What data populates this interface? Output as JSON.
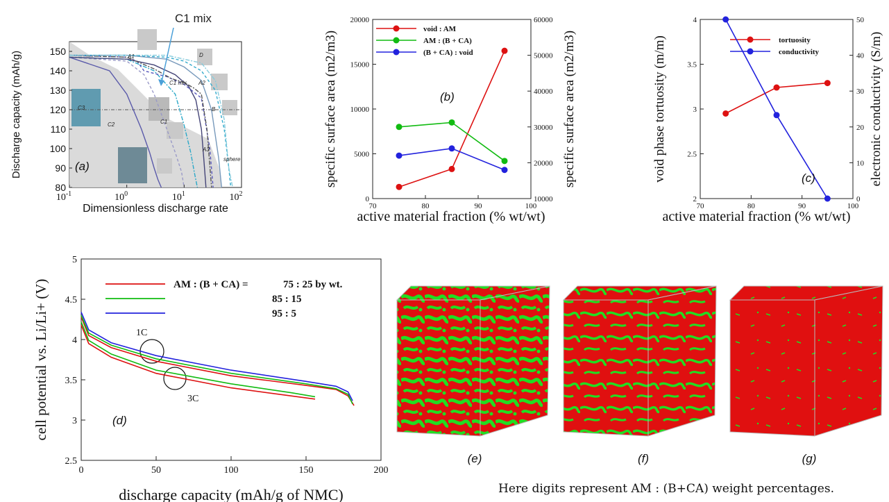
{
  "chart_data": [
    {
      "id": "a",
      "type": "line",
      "panel_label": "(a)",
      "xlabel": "Dimensionless discharge rate",
      "ylabel": "Discharge capacity (mAh/g)",
      "xscale": "log",
      "xlim": [
        0.1,
        100
      ],
      "ylim": [
        80,
        155
      ],
      "x_ticks": [
        "10-1",
        "100",
        "101",
        "102"
      ],
      "y_ticks": [
        80,
        90,
        100,
        110,
        120,
        130,
        140,
        150
      ],
      "annotations": [
        "C1 mix",
        "A1",
        "A2",
        "A3",
        "C3",
        "C2",
        "C1",
        "B",
        "D",
        "sphere",
        "C1 mix"
      ],
      "reference_line_y": 120,
      "series": [
        {
          "label": "C3",
          "color": "#5a5aaa",
          "x": [
            0.1,
            0.5,
            1,
            1.8,
            2.5,
            3,
            3.5,
            4
          ],
          "y": [
            147,
            140,
            128,
            110,
            98,
            90,
            84,
            80
          ]
        },
        {
          "label": "C2",
          "color": "#9a9ac8",
          "x": [
            0.1,
            1,
            2,
            3,
            5,
            7,
            9,
            10
          ],
          "y": [
            147,
            145,
            138,
            128,
            110,
            98,
            88,
            80
          ]
        },
        {
          "label": "A3",
          "color": "#2aa8c8",
          "x": [
            0.1,
            1,
            3,
            7,
            10,
            13,
            15,
            17
          ],
          "y": [
            147,
            146,
            140,
            128,
            112,
            98,
            88,
            80
          ]
        },
        {
          "label": "C1",
          "color": "#444477",
          "x": [
            0.1,
            1,
            3,
            7,
            12,
            16,
            20,
            22,
            24
          ],
          "y": [
            147,
            146,
            143,
            138,
            132,
            125,
            110,
            95,
            80
          ]
        },
        {
          "label": "A1",
          "color": "#5555bb",
          "x": [
            0.1,
            1,
            1.5,
            2,
            5,
            10,
            20,
            28,
            32
          ],
          "y": [
            148,
            147,
            145,
            140,
            137,
            133,
            126,
            100,
            80
          ]
        },
        {
          "label": "C1 mix",
          "color": "#555555",
          "x": [
            0.1,
            1,
            3,
            6,
            10,
            15,
            20,
            25,
            30
          ],
          "y": [
            148,
            147,
            141,
            136,
            134,
            131,
            128,
            110,
            80
          ]
        },
        {
          "label": "A2",
          "color": "#7799bb",
          "x": [
            0.1,
            1,
            5,
            10,
            20,
            30,
            40,
            45
          ],
          "y": [
            148,
            148,
            146,
            142,
            135,
            120,
            95,
            80
          ]
        },
        {
          "label": "B",
          "color": "#33aacc",
          "x": [
            0.1,
            1,
            5,
            10,
            20,
            35,
            50,
            60,
            65
          ],
          "y": [
            148,
            148,
            147,
            145,
            140,
            130,
            110,
            90,
            80
          ]
        },
        {
          "label": "sphere",
          "color": "#88ccdd",
          "x": [
            0.1,
            1,
            5,
            10,
            20,
            35,
            50,
            60,
            70
          ],
          "y": [
            148,
            148,
            148,
            146,
            144,
            135,
            115,
            90,
            80
          ]
        }
      ]
    },
    {
      "id": "b",
      "type": "line",
      "panel_label": "(b)",
      "xlabel": "active  material  fraction  (% wt/wt)",
      "ylabel_left": "specific  surface  area  (m2/m3)",
      "ylabel_right": "specific  surface  area  (m2/m3)",
      "xlim": [
        70,
        100
      ],
      "ylim_left": [
        0,
        20000
      ],
      "ylim_right": [
        10000,
        60000
      ],
      "x_ticks": [
        70,
        80,
        90,
        100
      ],
      "y_ticks_left": [
        0,
        5000,
        10000,
        15000,
        20000
      ],
      "y_ticks_right": [
        10000,
        20000,
        30000,
        40000,
        50000,
        60000
      ],
      "legend_position": "top-left",
      "series": [
        {
          "name": "void  :  AM",
          "color": "#dd1111",
          "axis": "left",
          "x": [
            75,
            85,
            95
          ],
          "y": [
            1300,
            3300,
            16500
          ]
        },
        {
          "name": "AM  :  (B + CA)",
          "color": "#11bb11",
          "axis": "left",
          "x": [
            75,
            85,
            95
          ],
          "y": [
            8000,
            8500,
            4200
          ]
        },
        {
          "name": "(B + CA)  :  void",
          "color": "#2222dd",
          "axis": "left",
          "x": [
            75,
            85,
            95
          ],
          "y": [
            4800,
            5600,
            3200
          ]
        }
      ]
    },
    {
      "id": "c",
      "type": "line",
      "panel_label": "(c)",
      "xlabel": "active  material  fraction  (% wt/wt)",
      "ylabel_left": "void  phase  tortuosity  (m/m)",
      "ylabel_right": "electronic  conductivity  (S/m)",
      "xlim": [
        70,
        100
      ],
      "ylim_left": [
        2,
        4
      ],
      "ylim_right": [
        0,
        50
      ],
      "x_ticks": [
        70,
        80,
        90,
        100
      ],
      "y_ticks_left": [
        2,
        2.5,
        3,
        3.5,
        4
      ],
      "y_ticks_right": [
        0,
        10,
        20,
        30,
        40,
        50
      ],
      "legend_position": "top-right",
      "series": [
        {
          "name": "tortuosity",
          "color": "#dd1111",
          "axis": "left",
          "x": [
            75,
            85,
            95
          ],
          "y": [
            2.95,
            3.24,
            3.29
          ]
        },
        {
          "name": "conductivity",
          "color": "#2222dd",
          "axis": "right",
          "x": [
            75,
            85,
            95
          ],
          "y": [
            50,
            23.3,
            0
          ]
        }
      ]
    },
    {
      "id": "d",
      "type": "line",
      "panel_label": "(d)",
      "xlabel": "discharge  capacity  (mAh/g  of  NMC)",
      "ylabel": "cell  potential  vs.  Li/Li+  (V)",
      "xlim": [
        0,
        200
      ],
      "ylim": [
        2.5,
        5
      ],
      "x_ticks": [
        0,
        50,
        100,
        150,
        200
      ],
      "y_ticks": [
        2.5,
        3,
        3.5,
        4,
        4.5,
        5
      ],
      "legend_title": "AM : (B + CA)  =",
      "legend_entries": [
        {
          "text": "75 : 25 by wt.",
          "color": "#dd1111"
        },
        {
          "text": "85 : 15",
          "color": "#11bb11"
        },
        {
          "text": "95 : 5",
          "color": "#2222dd"
        }
      ],
      "annotations": [
        "1C",
        "3C"
      ],
      "series": [
        {
          "label": "75:25 1C",
          "color": "#dd1111",
          "x": [
            0,
            5,
            20,
            50,
            100,
            150,
            170,
            178,
            182
          ],
          "y": [
            4.28,
            4.05,
            3.9,
            3.73,
            3.55,
            3.43,
            3.38,
            3.3,
            3.18
          ]
        },
        {
          "label": "85:15 1C",
          "color": "#11bb11",
          "x": [
            0,
            5,
            20,
            50,
            100,
            150,
            170,
            178,
            181
          ],
          "y": [
            4.3,
            4.08,
            3.93,
            3.76,
            3.58,
            3.45,
            3.39,
            3.32,
            3.2
          ]
        },
        {
          "label": "95:5 1C",
          "color": "#2222dd",
          "x": [
            0,
            5,
            20,
            50,
            100,
            150,
            170,
            178,
            181
          ],
          "y": [
            4.34,
            4.12,
            3.96,
            3.8,
            3.62,
            3.48,
            3.42,
            3.35,
            3.24
          ]
        },
        {
          "label": "75:25 3C",
          "color": "#dd1111",
          "x": [
            0,
            5,
            20,
            50,
            100,
            140,
            156
          ],
          "y": [
            4.18,
            3.95,
            3.78,
            3.58,
            3.4,
            3.3,
            3.26
          ]
        },
        {
          "label": "85:15 3C",
          "color": "#11bb11",
          "x": [
            0,
            5,
            20,
            50,
            100,
            140,
            156
          ],
          "y": [
            4.22,
            3.99,
            3.82,
            3.62,
            3.45,
            3.34,
            3.29
          ]
        }
      ]
    }
  ],
  "images": {
    "labels": [
      "(e)",
      "(f)",
      "(g)"
    ],
    "colors": {
      "active_material": "#e01010",
      "binder": "#22dd22"
    },
    "note": "Here digits represent AM : (B+CA) weight percentages."
  }
}
